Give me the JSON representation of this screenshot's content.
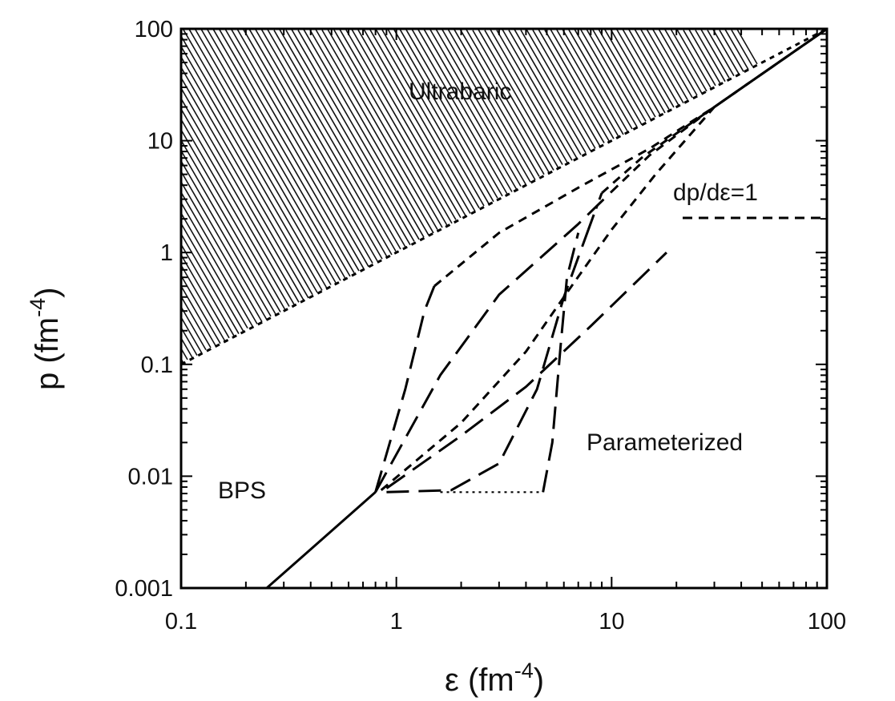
{
  "chart_data": {
    "type": "line",
    "xscale": "log",
    "yscale": "log",
    "xlim": [
      0.1,
      100
    ],
    "ylim": [
      0.001,
      100
    ],
    "xlabel": "ε (fm",
    "xlabel_sup": "-4",
    "xlabel_close": ")",
    "ylabel": "p (fm",
    "ylabel_sup": "-4",
    "ylabel_close": ")",
    "x_ticks": [
      0.1,
      1,
      10,
      100
    ],
    "x_tick_labels": [
      "0.1",
      "1",
      "10",
      "100"
    ],
    "y_ticks": [
      0.001,
      0.01,
      0.1,
      1,
      10,
      100
    ],
    "y_tick_labels": [
      "0.001",
      "0.01",
      "0.1",
      "1",
      "10",
      "100"
    ],
    "grid": false,
    "shaded_region": {
      "label": "Ultrabaric",
      "bound": [
        [
          0.1,
          0.1
        ],
        [
          100,
          100
        ]
      ]
    },
    "annotations": {
      "ultrabaric": "Ultrabaric",
      "bps": "BPS",
      "parameterized": "Parameterized",
      "legend_label": "dp/dε=1"
    },
    "series": [
      {
        "style": "solid",
        "points": [
          [
            0.25,
            0.001
          ],
          [
            0.8,
            0.0072
          ]
        ]
      },
      {
        "style": "long-dash",
        "points": [
          [
            0.8,
            0.0072
          ],
          [
            1.1,
            0.06
          ],
          [
            1.35,
            0.3
          ],
          [
            1.5,
            0.5
          ]
        ]
      },
      {
        "style": "short-dash",
        "points": [
          [
            1.5,
            0.5
          ],
          [
            3,
            1.5
          ],
          [
            7,
            3.8
          ],
          [
            15,
            8.5
          ],
          [
            30,
            20
          ],
          [
            100,
            100
          ]
        ]
      },
      {
        "style": "long-dash",
        "points": [
          [
            0.8,
            0.0072
          ],
          [
            1.6,
            0.08
          ],
          [
            3,
            0.42
          ],
          [
            7,
            1.8
          ],
          [
            10,
            3.5
          ]
        ]
      },
      {
        "style": "short-dash",
        "points": [
          [
            10,
            3.5
          ],
          [
            15,
            7.4
          ],
          [
            30,
            20
          ],
          [
            100,
            100
          ]
        ]
      },
      {
        "style": "short-dash",
        "points": [
          [
            0.85,
            0.0075
          ],
          [
            2,
            0.03
          ],
          [
            4,
            0.13
          ],
          [
            6,
            0.4
          ],
          [
            10,
            1.6
          ]
        ]
      },
      {
        "style": "short-dash",
        "points": [
          [
            10,
            1.6
          ],
          [
            16,
            5
          ],
          [
            30,
            20
          ],
          [
            100,
            100
          ]
        ]
      },
      {
        "style": "long-dash",
        "points": [
          [
            0.9,
            0.0078
          ],
          [
            2,
            0.023
          ],
          [
            4,
            0.063
          ],
          [
            8,
            0.22
          ],
          [
            18,
            1.0
          ]
        ]
      },
      {
        "style": "long-dash",
        "points": [
          [
            0.9,
            0.0072
          ],
          [
            1.8,
            0.0075
          ],
          [
            3,
            0.013
          ],
          [
            4.5,
            0.06
          ],
          [
            6,
            0.4
          ],
          [
            7.8,
            1.6
          ]
        ]
      },
      {
        "style": "dash-dot",
        "points": [
          [
            7.8,
            1.6
          ],
          [
            9,
            3.4
          ]
        ]
      },
      {
        "style": "short-dash",
        "points": [
          [
            9,
            3.4
          ],
          [
            14,
            7.2
          ],
          [
            30,
            20
          ],
          [
            100,
            100
          ]
        ]
      },
      {
        "style": "dotted",
        "points": [
          [
            1.6,
            0.0072
          ],
          [
            4.8,
            0.0072
          ]
        ]
      },
      {
        "style": "long-dash",
        "points": [
          [
            4.8,
            0.0072
          ],
          [
            5.3,
            0.02
          ],
          [
            5.8,
            0.15
          ],
          [
            6.2,
            0.6
          ],
          [
            7,
            1.5
          ]
        ]
      }
    ]
  }
}
